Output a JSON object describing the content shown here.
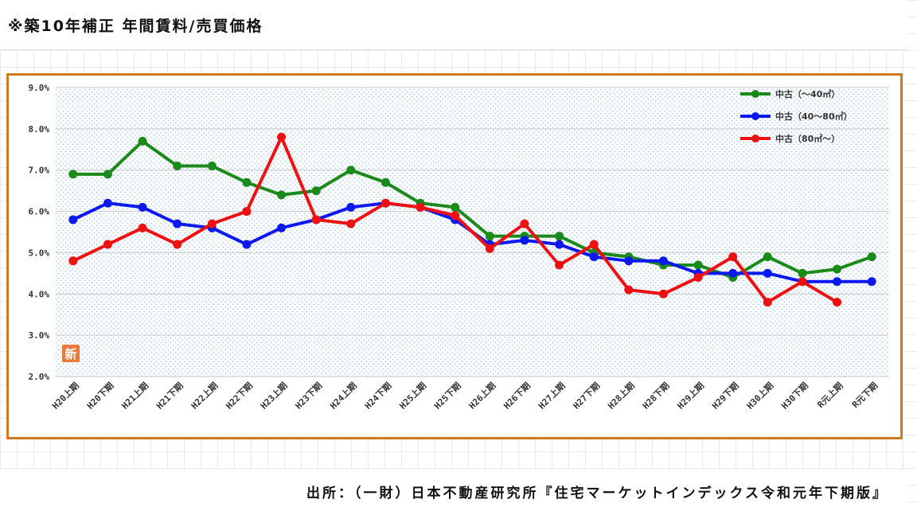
{
  "page": {
    "title": "※築10年補正 年間賃料/売買価格",
    "source": "出所：（一財）日本不動産研究所『住宅マーケットインデックス令和元年下期版』",
    "stamp": "新"
  },
  "chart_data": {
    "type": "line",
    "title": "",
    "xlabel": "",
    "ylabel": "",
    "ylim": [
      2.0,
      9.0
    ],
    "yticks": [
      "2.0%",
      "3.0%",
      "4.0%",
      "5.0%",
      "6.0%",
      "7.0%",
      "8.0%",
      "9.0%"
    ],
    "grid": true,
    "legend_position": "top-right",
    "categories": [
      "H20上期",
      "H20下期",
      "H21上期",
      "H21下期",
      "H22上期",
      "H22下期",
      "H23上期",
      "H23下期",
      "H24上期",
      "H24下期",
      "H25上期",
      "H25下期",
      "H26上期",
      "H26下期",
      "H27上期",
      "H27下期",
      "H28上期",
      "H28下期",
      "H29上期",
      "H29下期",
      "H30上期",
      "H30下期",
      "R元上期",
      "R元下期"
    ],
    "series": [
      {
        "name": "中古（～40㎡）",
        "color": "#1a8a1a",
        "values": [
          6.9,
          6.9,
          7.7,
          7.1,
          7.1,
          6.7,
          6.4,
          6.5,
          7.0,
          6.7,
          6.2,
          6.1,
          5.4,
          5.4,
          5.4,
          5.0,
          4.9,
          4.7,
          4.7,
          4.4,
          4.9,
          4.5,
          4.6,
          4.9
        ]
      },
      {
        "name": "中古（40～80㎡）",
        "color": "#0a1aee",
        "values": [
          5.8,
          6.2,
          6.1,
          5.7,
          5.6,
          5.2,
          5.6,
          5.8,
          6.1,
          6.2,
          6.1,
          5.8,
          5.2,
          5.3,
          5.2,
          4.9,
          4.8,
          4.8,
          4.5,
          4.5,
          4.5,
          4.3,
          4.3,
          4.3
        ]
      },
      {
        "name": "中古（80㎡～）",
        "color": "#ee1111",
        "values": [
          4.8,
          5.2,
          5.6,
          5.2,
          5.7,
          6.0,
          7.8,
          5.8,
          5.7,
          6.2,
          6.1,
          5.9,
          5.1,
          5.7,
          4.7,
          5.2,
          4.1,
          4.0,
          4.4,
          4.9,
          3.8,
          4.3,
          3.8,
          null
        ]
      }
    ]
  }
}
